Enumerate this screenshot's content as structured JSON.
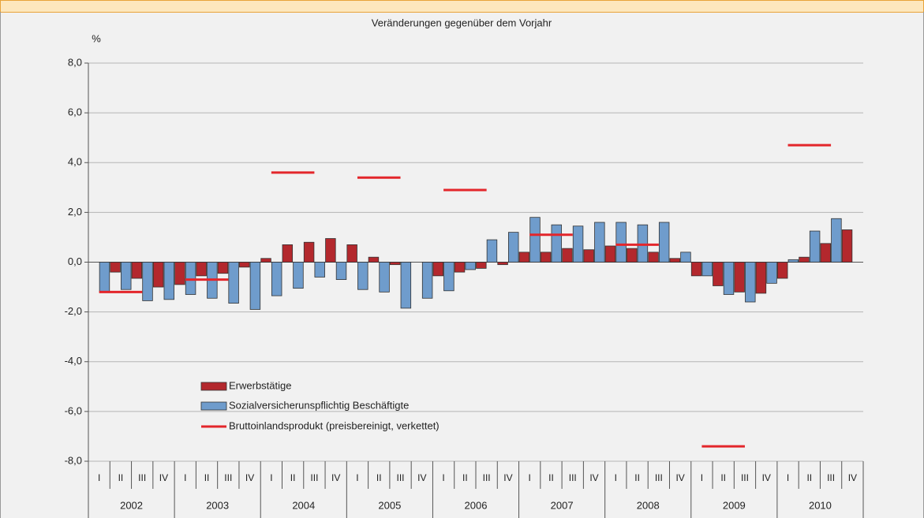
{
  "chart_data": {
    "type": "bar",
    "title": "Veränderungen gegenüber dem Vorjahr",
    "y_unit": "%",
    "categories": [
      "I",
      "II",
      "III",
      "IV",
      "I",
      "II",
      "III",
      "IV",
      "I",
      "II",
      "III",
      "IV",
      "I",
      "II",
      "III",
      "IV",
      "I",
      "II",
      "III",
      "IV",
      "I",
      "II",
      "III",
      "IV",
      "I",
      "II",
      "III",
      "IV",
      "I",
      "II",
      "III",
      "IV",
      "I",
      "II",
      "III",
      "IV"
    ],
    "years": [
      "2002",
      "2003",
      "2004",
      "2005",
      "2006",
      "2007",
      "2008",
      "2009",
      "2010"
    ],
    "series": [
      {
        "name": "Erwerbstätige",
        "color": "#b3282d",
        "values": [
          null,
          -0.4,
          -0.65,
          -1.0,
          -0.9,
          -0.55,
          -0.45,
          -0.2,
          0.15,
          0.7,
          0.8,
          0.95,
          0.7,
          0.2,
          -0.1,
          null,
          -0.55,
          -0.4,
          -0.25,
          -0.1,
          0.4,
          0.4,
          0.55,
          0.5,
          0.65,
          0.55,
          0.4,
          0.15,
          -0.55,
          -0.95,
          -1.2,
          -1.25,
          -0.65,
          0.2,
          0.75,
          1.3
        ]
      },
      {
        "name": "Sozialversicherunspflichtig Beschäftigte",
        "color": "#6f9ccc",
        "values": [
          -1.2,
          -1.1,
          -1.55,
          -1.5,
          -1.3,
          -1.45,
          -1.65,
          -1.9,
          -1.35,
          -1.05,
          -0.6,
          -0.7,
          -1.1,
          -1.2,
          -1.85,
          -1.45,
          -1.15,
          -0.3,
          0.9,
          1.2,
          1.8,
          1.5,
          1.45,
          1.6,
          1.6,
          1.5,
          1.6,
          0.4,
          -0.55,
          -1.3,
          -1.6,
          -0.85,
          0.1,
          1.25,
          1.75,
          null
        ]
      }
    ],
    "line_series": {
      "name": "Bruttoinlandsprodukt (preisbereinigt, verkettet)",
      "color": "#e3262b",
      "values": [
        -1.2,
        -0.7,
        3.6,
        3.4,
        2.9,
        1.1,
        0.7,
        -7.4,
        4.7
      ]
    },
    "ylim": [
      -8,
      8
    ],
    "yticks": [
      {
        "value": -8,
        "label": "-8,0"
      },
      {
        "value": -6,
        "label": "-6,0"
      },
      {
        "value": -4,
        "label": "-4,0"
      },
      {
        "value": -2,
        "label": "-2,0"
      },
      {
        "value": 0,
        "label": "0,0"
      },
      {
        "value": 2,
        "label": "2,0"
      },
      {
        "value": 4,
        "label": "4,0"
      },
      {
        "value": 6,
        "label": "6,0"
      },
      {
        "value": 8,
        "label": "8,0"
      }
    ],
    "grid": true
  }
}
